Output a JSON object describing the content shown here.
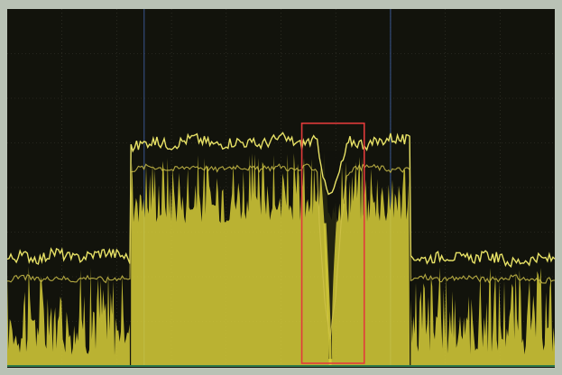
{
  "instrument": {
    "type": "spectrum-analyzer-display",
    "screen_background": "#12130c",
    "grid_color": "#3a3a30",
    "marker_line_color": "#3b5a96",
    "bottom_axis_color": "#2f7a4a",
    "border_color": "#b9c2b5",
    "readout_lines": [
      "",
      ""
    ]
  },
  "chart_data": {
    "type": "line",
    "title": "",
    "xlabel": "",
    "ylabel": "",
    "xlim": [
      0,
      100
    ],
    "ylim": [
      0,
      100
    ],
    "grid": true,
    "legend": "none",
    "series": [
      {
        "role": "max-hold-trace",
        "color": "#e8e266",
        "x": [
          0,
          3,
          6,
          9,
          12,
          15,
          18,
          21,
          22.4,
          22.6,
          26,
          30,
          34,
          38,
          42,
          46,
          50,
          52,
          53.5,
          55,
          56.6,
          57,
          58,
          59,
          60,
          61,
          62,
          62.6,
          66,
          70,
          73.5,
          73.7,
          76,
          80,
          84,
          88,
          92,
          96,
          100
        ],
        "y": [
          30,
          31,
          30,
          32,
          30,
          31,
          32,
          31,
          30,
          61,
          63,
          62,
          64,
          62,
          63,
          62,
          64,
          63,
          62,
          63,
          63,
          57,
          53,
          47,
          51,
          56,
          61,
          63,
          62,
          64,
          63,
          31,
          30,
          31,
          30,
          31,
          29,
          30,
          30
        ]
      },
      {
        "role": "average-trace",
        "color": "#cfc24a",
        "x": [
          0,
          3,
          6,
          9,
          12,
          15,
          18,
          21,
          22.4,
          22.6,
          26,
          30,
          34,
          38,
          42,
          46,
          50,
          52,
          53.5,
          55,
          56.6,
          57,
          58,
          59,
          60,
          61,
          62,
          62.6,
          66,
          70,
          73.5,
          73.7,
          76,
          80,
          84,
          88,
          92,
          96,
          100
        ],
        "y": [
          24,
          25,
          24,
          25,
          24,
          25,
          24,
          25,
          24,
          55,
          56,
          55,
          56,
          55,
          56,
          55,
          56,
          55,
          55,
          56,
          55,
          40,
          18,
          8,
          20,
          40,
          53,
          55,
          56,
          55,
          55,
          24,
          25,
          24,
          25,
          24,
          25,
          24,
          24
        ]
      }
    ],
    "noise_fill": {
      "color": "#d8cf3a",
      "regions": [
        {
          "x": [
            0,
            22.4
          ],
          "top": 28,
          "bottom": 3
        },
        {
          "x": [
            22.6,
            73.5
          ],
          "top": 60,
          "bottom": 40
        },
        {
          "x": [
            73.7,
            100
          ],
          "top": 28,
          "bottom": 3
        }
      ],
      "notch": {
        "x": [
          57,
          61
        ],
        "center": 59,
        "depth": 2
      }
    },
    "markers": [
      {
        "label": "",
        "x": 25,
        "color": "#3b5a96"
      },
      {
        "label": "",
        "x": 70,
        "color": "#3b5a96"
      }
    ],
    "annotations": [
      {
        "type": "highlight-box",
        "color": "#e23b3b",
        "x_range": [
          53.8,
          65.2
        ],
        "y_range": [
          0,
          68
        ]
      }
    ]
  }
}
